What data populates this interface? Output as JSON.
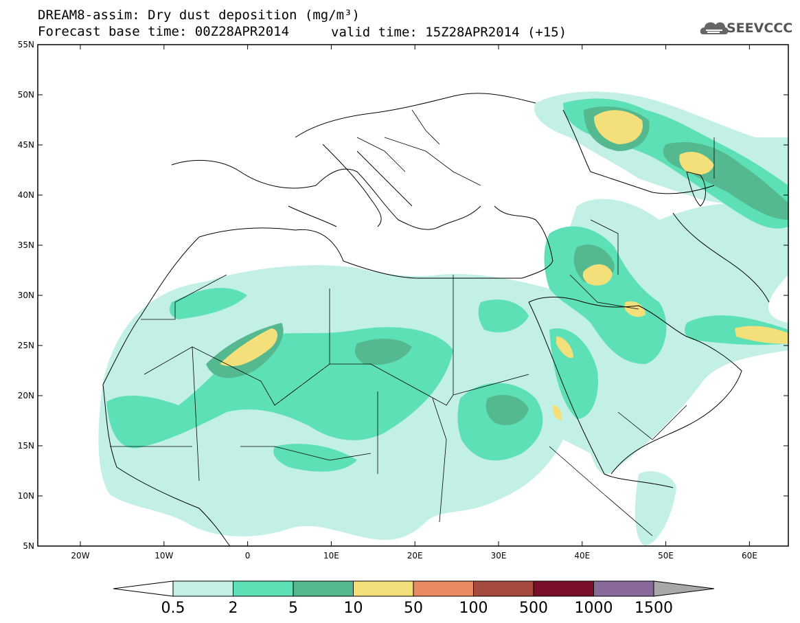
{
  "title_line1": "DREAM8-assim: Dry dust deposition (mg/m³)",
  "title_line2_left": "Forecast base time: 00Z28APR2014",
  "title_line2_right": "valid time: 15Z28APR2014 (+15)",
  "logo_text": "SEEVCCC",
  "lat_labels": [
    "55N",
    "50N",
    "45N",
    "40N",
    "35N",
    "30N",
    "25N",
    "20N",
    "15N",
    "10N",
    "5N"
  ],
  "lon_labels": [
    "20W",
    "10W",
    "0",
    "10E",
    "20E",
    "30E",
    "40E",
    "50E",
    "60E"
  ],
  "colorbar": {
    "labels": [
      "0.5",
      "2",
      "5",
      "10",
      "50",
      "100",
      "500",
      "1000",
      "1500"
    ],
    "colors": [
      "#c2f0e6",
      "#5ee0b6",
      "#55b98f",
      "#f3e07a",
      "#ea8a63",
      "#a64a3d",
      "#7a0f2a",
      "#8a6a9a"
    ],
    "under_color": "#ffffff",
    "over_color": "#a8a8a8"
  },
  "colors": {
    "light": "#c2f0e6",
    "mid": "#5ee0b6",
    "dark": "#55b98f",
    "yellow": "#f3e07a"
  }
}
